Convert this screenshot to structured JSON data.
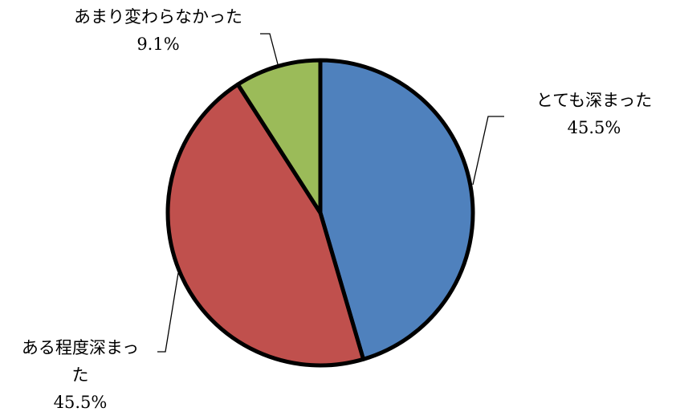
{
  "chart_data": {
    "type": "pie",
    "slices": [
      {
        "label": "とても深まった",
        "value": 45.5,
        "value_label": "45.5%",
        "color": "#4F81BD"
      },
      {
        "label": "ある程度深まった",
        "value": 45.5,
        "value_label": "45.5%",
        "color": "#C0504D"
      },
      {
        "label": "あまり変わらなかった",
        "value": 9.1,
        "value_label": "9.1%",
        "color": "#9BBB59"
      }
    ],
    "start_angle": "12 o'clock",
    "direction": "clockwise",
    "legend": "none",
    "data_labels": "outside with leader lines"
  }
}
